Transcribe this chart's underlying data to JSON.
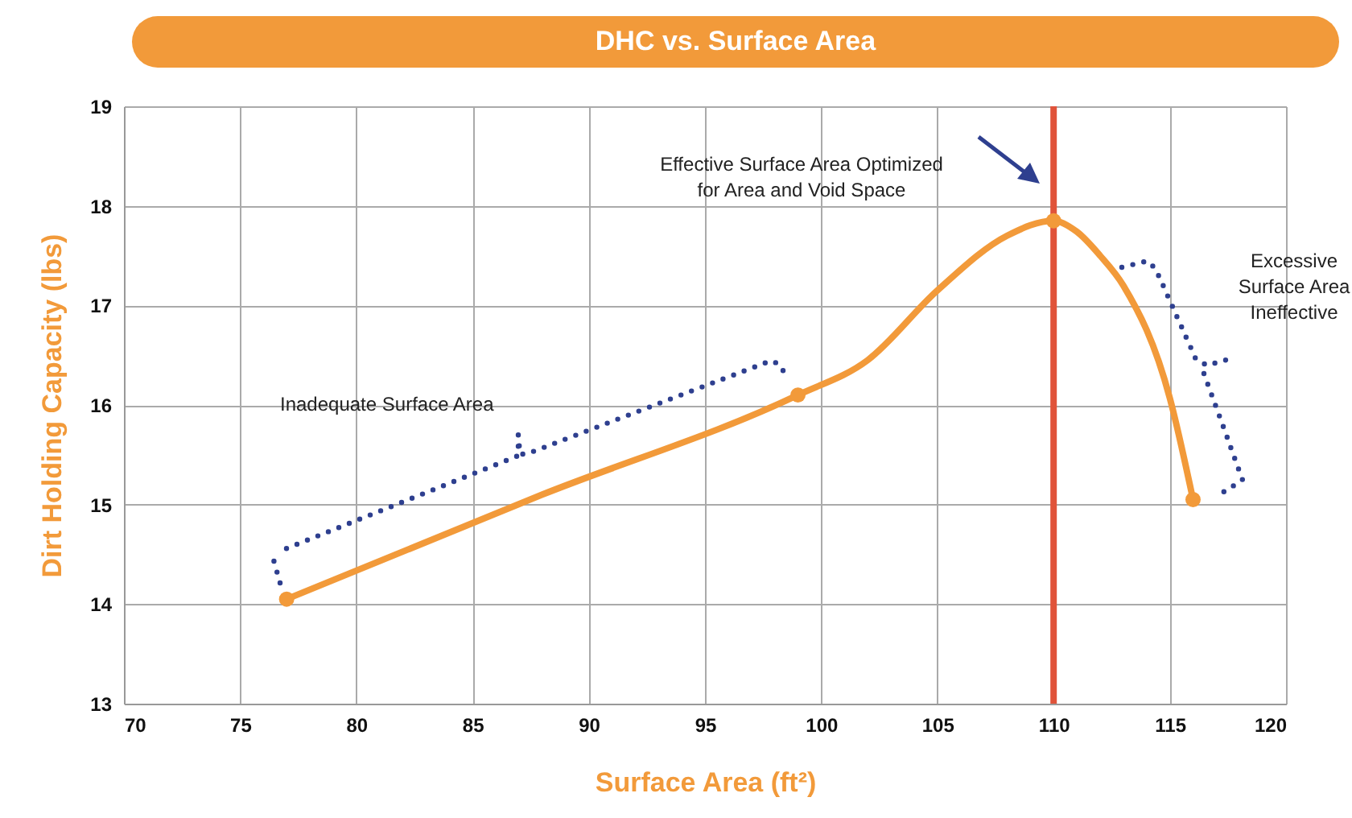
{
  "chart_data": {
    "type": "line",
    "title": "DHC vs. Surface Area",
    "xlabel": "Surface Area (ft²)",
    "ylabel": "Dirt Holding Capacity (lbs)",
    "xlim": [
      70,
      120
    ],
    "xticks": [
      70,
      75,
      80,
      85,
      90,
      95,
      100,
      105,
      110,
      115,
      120
    ],
    "ylim": [
      13,
      19
    ],
    "yticks": [
      13,
      14,
      15,
      16,
      17,
      18,
      19
    ],
    "grid": true,
    "series": [
      {
        "color": "#f29a3a",
        "marker": "none",
        "x": [
          77,
          88,
          99,
          102,
          105,
          108,
          110,
          111,
          112,
          113,
          115,
          116
        ],
        "values": [
          14.05,
          15.1,
          16.1,
          16.45,
          17.15,
          17.7,
          17.85,
          17.74,
          17.5,
          17.2,
          16.07,
          15.05
        ]
      },
      {
        "type": "scatter",
        "color": "#f29a3a",
        "marker": "circle",
        "x": [
          77,
          99,
          110,
          116
        ],
        "values": [
          14.05,
          16.1,
          17.85,
          15.05
        ]
      }
    ],
    "ref_lines": [
      {
        "axis": "x",
        "value": 110,
        "color": "#e0533a"
      }
    ],
    "annotations": [
      "Effective Surface Area Optimized\nfor Area and Void Space",
      "Inadequate Surface Area",
      "Excessive\nSurface Area\nIneffective"
    ]
  }
}
